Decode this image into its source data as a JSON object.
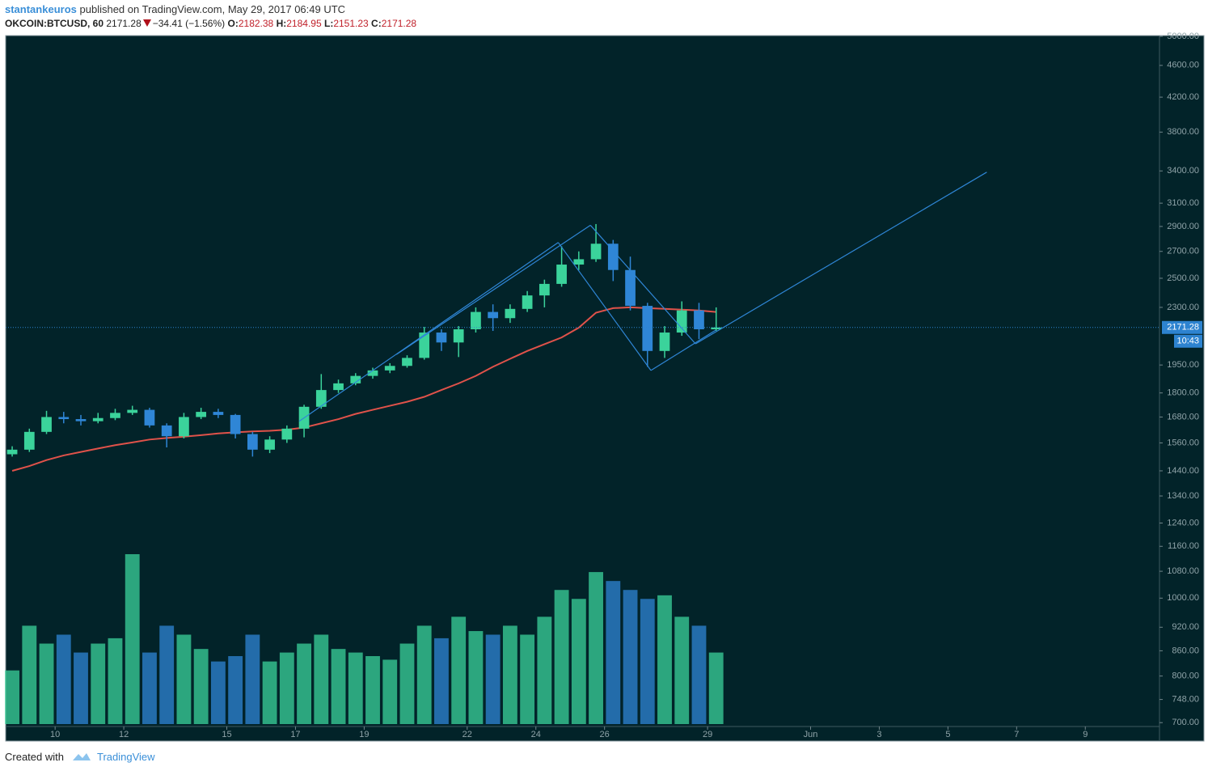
{
  "header": {
    "author": "stantankeuros",
    "published": "published on TradingView.com, May 29, 2017 06:49 UTC",
    "symbol": "OKCOIN:BTCUSD, 60",
    "last": 2171.28,
    "change": "−34.41 (−1.56%)",
    "open_label": "O:",
    "open": 2182.38,
    "high_label": "H:",
    "high": 2184.95,
    "low_label": "L:",
    "low": 2151.23,
    "close_label": "C:",
    "close": 2171.28
  },
  "footer": {
    "created": "Created with",
    "brand": "TradingView"
  },
  "chart_data": {
    "type": "candlestick",
    "log": true,
    "up_color": "#3bd39b",
    "down_color": "#2f86d6",
    "ma_color": "#e0524a",
    "drawing_color": "#2f86d6",
    "last_color": "#2d83d0",
    "x": [
      8.75,
      9.25,
      9.75,
      10.25,
      10.75,
      11.25,
      11.75,
      12.25,
      12.75,
      13.25,
      13.75,
      14.25,
      14.75,
      15.25,
      15.75,
      16.25,
      16.75,
      17.25,
      17.75,
      18.25,
      18.75,
      19.25,
      19.75,
      20.25,
      20.75,
      21.25,
      21.75,
      22.25,
      22.75,
      23.25,
      23.75,
      24.25,
      24.75,
      25.25,
      25.75,
      26.25,
      26.75,
      27.25,
      27.75,
      28.25,
      28.75,
      29.25
    ],
    "open": [
      1510,
      1530,
      1610,
      1680,
      1670,
      1660,
      1675,
      1700,
      1715,
      1640,
      1590,
      1680,
      1705,
      1690,
      1600,
      1530,
      1575,
      1625,
      1730,
      1815,
      1850,
      1890,
      1920,
      1945,
      1990,
      2140,
      2080,
      2160,
      2270,
      2230,
      2290,
      2380,
      2460,
      2600,
      2640,
      2760,
      2560,
      2310,
      2030,
      2140,
      2280,
      2160
    ],
    "high": [
      1545,
      1625,
      1710,
      1705,
      1690,
      1700,
      1720,
      1735,
      1725,
      1650,
      1700,
      1725,
      1720,
      1695,
      1610,
      1590,
      1640,
      1740,
      1900,
      1870,
      1905,
      1935,
      1960,
      2005,
      2175,
      2160,
      2180,
      2300,
      2320,
      2320,
      2410,
      2490,
      2740,
      2700,
      2920,
      2790,
      2660,
      2330,
      2180,
      2340,
      2330,
      2300
    ],
    "low": [
      1500,
      1520,
      1600,
      1650,
      1640,
      1650,
      1665,
      1690,
      1630,
      1540,
      1580,
      1670,
      1675,
      1580,
      1500,
      1515,
      1560,
      1585,
      1720,
      1800,
      1840,
      1875,
      1905,
      1935,
      1980,
      2030,
      1995,
      2140,
      2150,
      2200,
      2270,
      2300,
      2440,
      2560,
      2620,
      2480,
      2280,
      1940,
      1990,
      2120,
      2100,
      2150
    ],
    "close": [
      1530,
      1610,
      1680,
      1670,
      1660,
      1675,
      1700,
      1715,
      1640,
      1590,
      1680,
      1705,
      1690,
      1600,
      1530,
      1575,
      1625,
      1730,
      1815,
      1850,
      1890,
      1920,
      1945,
      1990,
      2140,
      2080,
      2160,
      2270,
      2230,
      2290,
      2380,
      2460,
      2600,
      2640,
      2760,
      2560,
      2310,
      2030,
      2140,
      2280,
      2160,
      2171.28
    ],
    "volume": [
      30,
      55,
      45,
      50,
      40,
      45,
      48,
      95,
      40,
      55,
      50,
      42,
      35,
      38,
      50,
      35,
      40,
      45,
      50,
      42,
      40,
      38,
      36,
      45,
      55,
      48,
      60,
      52,
      50,
      55,
      50,
      60,
      75,
      70,
      85,
      80,
      75,
      70,
      72,
      60,
      55,
      40
    ],
    "ma": [
      1440,
      1460,
      1485,
      1505,
      1520,
      1535,
      1550,
      1562,
      1575,
      1582,
      1588,
      1595,
      1603,
      1608,
      1612,
      1615,
      1620,
      1630,
      1650,
      1670,
      1695,
      1715,
      1735,
      1755,
      1780,
      1815,
      1850,
      1890,
      1940,
      1985,
      2030,
      2070,
      2110,
      2170,
      2265,
      2295,
      2300,
      2295,
      2290,
      2285,
      2280,
      2270
    ],
    "drawings": [
      {
        "x": [
          17.11,
          24.65
        ],
        "y": [
          1660,
          2770
        ]
      },
      {
        "x": [
          19.94,
          25.59
        ],
        "y": [
          2010,
          2910
        ]
      },
      {
        "x": [
          24.65,
          27.35
        ],
        "y": [
          2770,
          1920
        ]
      },
      {
        "x": [
          25.59,
          28.65
        ],
        "y": [
          2910,
          2072
        ]
      },
      {
        "x": [
          27.35,
          29.24
        ],
        "y": [
          1920,
          2155
        ]
      },
      {
        "x": [
          28.65,
          37.13
        ],
        "y": [
          2072,
          3388
        ]
      }
    ],
    "last_price": 2171.28,
    "countdown": "10:43",
    "xlim": [
      8.56,
      42.16
    ],
    "ylim": [
      664,
      5010
    ],
    "xticks": [
      10,
      12,
      15,
      17,
      19,
      22,
      24,
      26,
      29,
      {
        "value": 32,
        "label": "Jun"
      },
      {
        "value": 34,
        "label": "3"
      },
      {
        "value": 36,
        "label": "5"
      },
      {
        "value": 38,
        "label": "7"
      },
      {
        "value": 40,
        "label": "9"
      }
    ],
    "yticks": [
      {
        "value": 5000,
        "label": "5000.00"
      },
      {
        "value": 4600,
        "label": "4600.00"
      },
      {
        "value": 4200,
        "label": "4200.00"
      },
      {
        "value": 3800,
        "label": "3800.00"
      },
      {
        "value": 3400,
        "label": "3400.00"
      },
      {
        "value": 3100,
        "label": "3100.00"
      },
      {
        "value": 2900,
        "label": "2900.00"
      },
      {
        "value": 2700,
        "label": "2700.00"
      },
      {
        "value": 2500,
        "label": "2500.00"
      },
      {
        "value": 2300,
        "label": "2300.00"
      },
      {
        "value": 1950,
        "label": "1950.00"
      },
      {
        "value": 1800,
        "label": "1800.00"
      },
      {
        "value": 1680,
        "label": "1680.00"
      },
      {
        "value": 1560,
        "label": "1560.00"
      },
      {
        "value": 1440,
        "label": "1440.00"
      },
      {
        "value": 1340,
        "label": "1340.00"
      },
      {
        "value": 1240,
        "label": "1240.00"
      },
      {
        "value": 1160,
        "label": "1160.00"
      },
      {
        "value": 1080,
        "label": "1080.00"
      },
      {
        "value": 1000,
        "label": "1000.00"
      },
      {
        "value": 920,
        "label": "920.00"
      },
      {
        "value": 860,
        "label": "860.00"
      },
      {
        "value": 800,
        "label": "800.00"
      },
      {
        "value": 748,
        "label": "748.00"
      },
      {
        "value": 700,
        "label": "700.00"
      }
    ]
  }
}
